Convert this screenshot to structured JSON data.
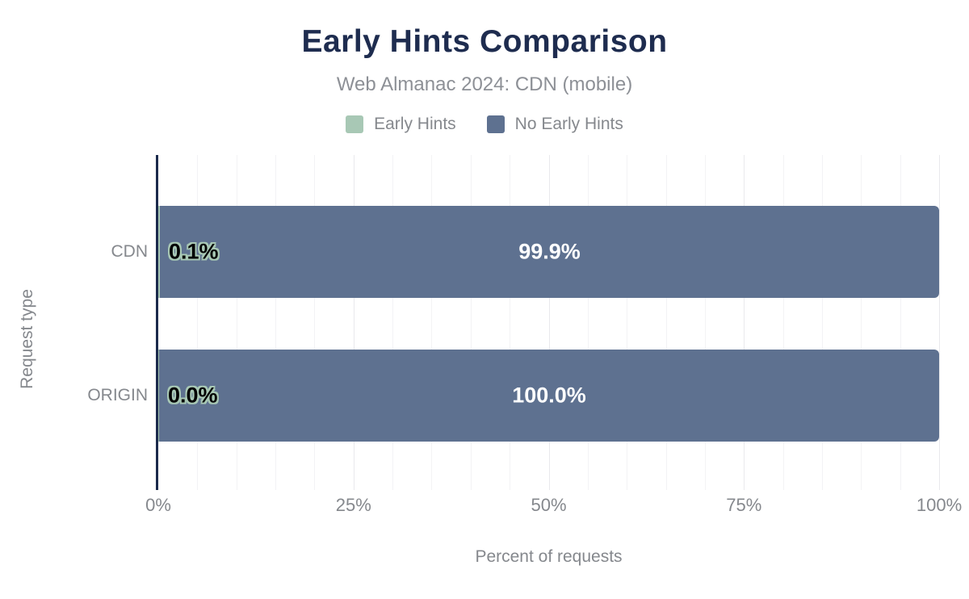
{
  "chart_data": {
    "type": "bar",
    "orientation": "horizontal",
    "stacked": true,
    "title": "Early Hints Comparison",
    "subtitle": "Web Almanac 2024: CDN (mobile)",
    "categories": [
      "CDN",
      "ORIGIN"
    ],
    "series": [
      {
        "name": "Early Hints",
        "color": "#a8c8b5",
        "values": [
          0.1,
          0.0
        ],
        "labels": [
          "0.1%",
          "0.0%"
        ]
      },
      {
        "name": "No Early Hints",
        "color": "#5e7190",
        "values": [
          99.9,
          100.0
        ],
        "labels": [
          "99.9%",
          "100.0%"
        ]
      }
    ],
    "xlabel": "Percent of requests",
    "ylabel": "Request type",
    "xlim": [
      0,
      100
    ],
    "x_ticks": [
      {
        "value": 0,
        "label": "0%"
      },
      {
        "value": 25,
        "label": "25%"
      },
      {
        "value": 50,
        "label": "50%"
      },
      {
        "value": 75,
        "label": "75%"
      },
      {
        "value": 100,
        "label": "100%"
      }
    ],
    "grid": {
      "show": true,
      "minor_step": 5,
      "major_step": 25
    },
    "legend_position": "top",
    "colors": {
      "title": "#1e2c4f",
      "subtitle": "#8d9096",
      "axis_line": "#1b2a4c",
      "muted_text": "#85888d",
      "grid_minor": "#f3f3f5",
      "grid_major": "#e9e9ed",
      "bar_value_text": "#ffffff",
      "outlined_value_fill": "#000000"
    }
  }
}
